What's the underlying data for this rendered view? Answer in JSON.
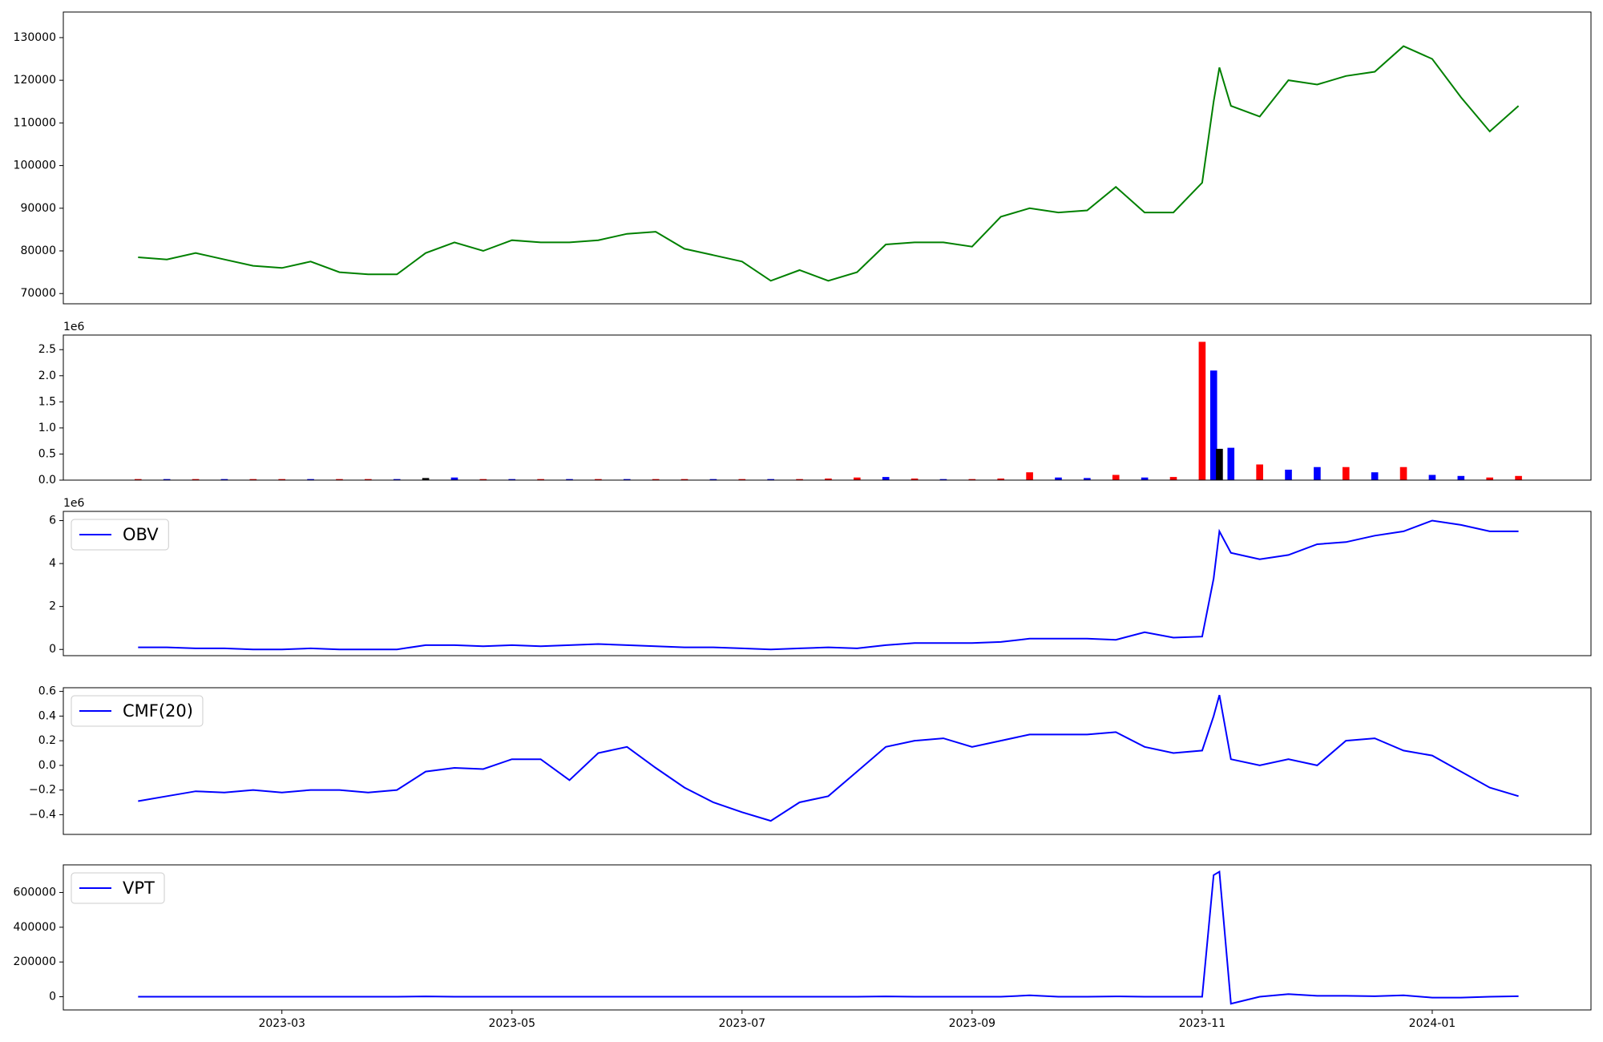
{
  "chart_data": [
    {
      "type": "line",
      "x": [
        0.75,
        1,
        1.25,
        1.5,
        1.75,
        2,
        2.25,
        2.5,
        2.75,
        3,
        3.25,
        3.5,
        3.75,
        4,
        4.25,
        4.5,
        4.75,
        5,
        5.25,
        5.5,
        5.75,
        6,
        6.25,
        6.5,
        6.75,
        7,
        7.25,
        7.5,
        7.75,
        8,
        8.25,
        8.5,
        8.75,
        9,
        9.25,
        9.5,
        9.75,
        10,
        10.1,
        10.15,
        10.25,
        10.5,
        10.75,
        11,
        11.25,
        11.5,
        11.75,
        12,
        12.25,
        12.5,
        12.75
      ],
      "values": [
        78500,
        78000,
        79500,
        78000,
        76500,
        76000,
        77500,
        75000,
        74500,
        74500,
        79500,
        82000,
        80000,
        82500,
        82000,
        82000,
        82500,
        84000,
        84500,
        80500,
        79000,
        77500,
        73000,
        75500,
        73000,
        75000,
        81500,
        82000,
        82000,
        81000,
        88000,
        90000,
        89000,
        89500,
        95000,
        89000,
        89000,
        96000,
        115000,
        123000,
        114000,
        111500,
        120000,
        119000,
        121000,
        122000,
        128000,
        125000,
        116000,
        108000,
        114000
      ],
      "color": "#008000",
      "xlim": [
        0.1,
        13.38
      ],
      "ylim": [
        67600,
        136000
      ],
      "yticks": [
        70000,
        80000,
        90000,
        100000,
        110000,
        120000,
        130000
      ]
    },
    {
      "type": "bar",
      "x": [
        0.75,
        1,
        1.25,
        1.5,
        1.75,
        2,
        2.25,
        2.5,
        2.75,
        3,
        3.25,
        3.5,
        3.75,
        4,
        4.25,
        4.5,
        4.75,
        5,
        5.25,
        5.5,
        5.75,
        6,
        6.25,
        6.5,
        6.75,
        7,
        7.25,
        7.5,
        7.75,
        8,
        8.25,
        8.5,
        8.75,
        9,
        9.25,
        9.5,
        9.75,
        10,
        10.1,
        10.15,
        10.25,
        10.5,
        10.75,
        11,
        11.25,
        11.5,
        11.75,
        12,
        12.25,
        12.5,
        12.75
      ],
      "values": [
        0.02,
        0.02,
        0.02,
        0.02,
        0.02,
        0.02,
        0.02,
        0.02,
        0.02,
        0.02,
        0.04,
        0.05,
        0.02,
        0.02,
        0.02,
        0.02,
        0.02,
        0.02,
        0.02,
        0.02,
        0.02,
        0.02,
        0.02,
        0.02,
        0.03,
        0.05,
        0.06,
        0.03,
        0.02,
        0.02,
        0.03,
        0.15,
        0.05,
        0.04,
        0.1,
        0.05,
        0.06,
        2.65,
        2.1,
        0.6,
        0.62,
        0.3,
        0.2,
        0.25,
        0.25,
        0.15,
        0.25,
        0.1,
        0.08,
        0.05,
        0.08
      ],
      "colors": [
        "red",
        "blue",
        "red",
        "blue",
        "red",
        "red",
        "blue",
        "red",
        "red",
        "blue",
        "black",
        "blue",
        "red",
        "blue",
        "red",
        "blue",
        "red",
        "blue",
        "red",
        "red",
        "blue",
        "red",
        "blue",
        "red",
        "red",
        "red",
        "blue",
        "red",
        "blue",
        "red",
        "red",
        "red",
        "blue",
        "blue",
        "red",
        "blue",
        "red",
        "red",
        "blue",
        "black",
        "blue",
        "red",
        "blue",
        "blue",
        "red",
        "blue",
        "red",
        "blue",
        "blue",
        "red",
        "red"
      ],
      "y_offset_label": "1e6",
      "xlim": [
        0.1,
        13.38
      ],
      "ylim": [
        0,
        2.78
      ],
      "yticks": [
        {
          "value": 0,
          "label": "0.0"
        },
        0.5,
        {
          "value": 1,
          "label": "1.0"
        },
        1.5,
        {
          "value": 2,
          "label": "2.0"
        },
        2.5
      ]
    },
    {
      "type": "line",
      "x": [
        0.75,
        1,
        1.25,
        1.5,
        1.75,
        2,
        2.25,
        2.5,
        2.75,
        3,
        3.25,
        3.5,
        3.75,
        4,
        4.25,
        4.5,
        4.75,
        5,
        5.25,
        5.5,
        5.75,
        6,
        6.25,
        6.5,
        6.75,
        7,
        7.25,
        7.5,
        7.75,
        8,
        8.25,
        8.5,
        8.75,
        9,
        9.25,
        9.5,
        9.75,
        10,
        10.1,
        10.15,
        10.25,
        10.5,
        10.75,
        11,
        11.25,
        11.5,
        11.75,
        12,
        12.25,
        12.5,
        12.75
      ],
      "series": [
        {
          "name": "OBV",
          "color": "#0000ff",
          "values": [
            0.1,
            0.1,
            0.05,
            0.05,
            0,
            0,
            0.05,
            0,
            0,
            0,
            0.2,
            0.2,
            0.15,
            0.2,
            0.15,
            0.2,
            0.25,
            0.2,
            0.15,
            0.1,
            0.1,
            0.05,
            0,
            0.05,
            0.1,
            0.05,
            0.2,
            0.3,
            0.3,
            0.3,
            0.35,
            0.5,
            0.5,
            0.5,
            0.45,
            0.8,
            0.55,
            0.6,
            3.3,
            5.5,
            4.5,
            4.2,
            4.4,
            4.9,
            5,
            5.3,
            5.5,
            6,
            5.8,
            5.5,
            5.5
          ]
        }
      ],
      "y_offset_label": "1e6",
      "xlim": [
        0.1,
        13.38
      ],
      "ylim": [
        -0.29,
        6.43
      ],
      "yticks": [
        0,
        2,
        4,
        6
      ],
      "legend": "upper left"
    },
    {
      "type": "line",
      "x": [
        0.75,
        1,
        1.25,
        1.5,
        1.75,
        2,
        2.25,
        2.5,
        2.75,
        3,
        3.25,
        3.5,
        3.75,
        4,
        4.25,
        4.5,
        4.75,
        5,
        5.25,
        5.5,
        5.75,
        6,
        6.25,
        6.5,
        6.75,
        7,
        7.25,
        7.5,
        7.75,
        8,
        8.25,
        8.5,
        8.75,
        9,
        9.25,
        9.5,
        9.75,
        10,
        10.1,
        10.15,
        10.25,
        10.5,
        10.75,
        11,
        11.25,
        11.5,
        11.75,
        12,
        12.25,
        12.5,
        12.75
      ],
      "series": [
        {
          "name": "CMF(20)",
          "color": "#0000ff",
          "values": [
            -0.29,
            -0.25,
            -0.21,
            -0.22,
            -0.2,
            -0.22,
            -0.2,
            -0.2,
            -0.22,
            -0.2,
            -0.05,
            -0.02,
            -0.03,
            0.05,
            0.05,
            -0.12,
            0.1,
            0.15,
            -0.02,
            -0.18,
            -0.3,
            -0.38,
            -0.45,
            -0.3,
            -0.25,
            -0.05,
            0.15,
            0.2,
            0.22,
            0.15,
            0.2,
            0.25,
            0.25,
            0.25,
            0.27,
            0.15,
            0.1,
            0.12,
            0.4,
            0.57,
            0.05,
            0,
            0.05,
            0,
            0.2,
            0.22,
            0.12,
            0.08,
            -0.05,
            -0.18,
            -0.25
          ]
        }
      ],
      "xlim": [
        0.1,
        13.38
      ],
      "ylim": [
        -0.56,
        0.63
      ],
      "yticks": [
        {
          "value": -0.4,
          "label": "−0.4"
        },
        {
          "value": -0.2,
          "label": "−0.2"
        },
        {
          "value": 0,
          "label": "0.0"
        },
        0.2,
        0.4,
        0.6
      ],
      "legend": "upper left"
    },
    {
      "type": "line",
      "x": [
        0.75,
        1,
        1.25,
        1.5,
        1.75,
        2,
        2.25,
        2.5,
        2.75,
        3,
        3.25,
        3.5,
        3.75,
        4,
        4.25,
        4.5,
        4.75,
        5,
        5.25,
        5.5,
        5.75,
        6,
        6.25,
        6.5,
        6.75,
        7,
        7.25,
        7.5,
        7.75,
        8,
        8.25,
        8.5,
        8.75,
        9,
        9.25,
        9.5,
        9.75,
        10,
        10.1,
        10.15,
        10.25,
        10.5,
        10.75,
        11,
        11.25,
        11.5,
        11.75,
        12,
        12.25,
        12.5,
        12.75
      ],
      "series": [
        {
          "name": "VPT",
          "color": "#0000ff",
          "values": [
            0,
            0,
            0,
            0,
            0,
            0,
            0,
            0,
            0,
            0,
            2000,
            0,
            0,
            0,
            0,
            0,
            0,
            0,
            0,
            0,
            0,
            0,
            0,
            0,
            0,
            0,
            2000,
            0,
            0,
            0,
            0,
            8000,
            0,
            0,
            2000,
            0,
            0,
            0,
            700000,
            720000,
            -40000,
            0,
            15000,
            5000,
            5000,
            3000,
            8000,
            -5000,
            -5000,
            0,
            3000
          ]
        }
      ],
      "xlim": [
        0.1,
        13.38
      ],
      "ylim": [
        -76000,
        759000
      ],
      "yticks": [
        0,
        200000,
        400000,
        600000
      ],
      "xticks": [
        {
          "value": 2,
          "label": "2023-03"
        },
        {
          "value": 4,
          "label": "2023-05"
        },
        {
          "value": 6,
          "label": "2023-07"
        },
        {
          "value": 8,
          "label": "2023-09"
        },
        {
          "value": 10,
          "label": "2023-11"
        },
        {
          "value": 12,
          "label": "2024-01"
        }
      ],
      "legend": "upper left"
    }
  ]
}
